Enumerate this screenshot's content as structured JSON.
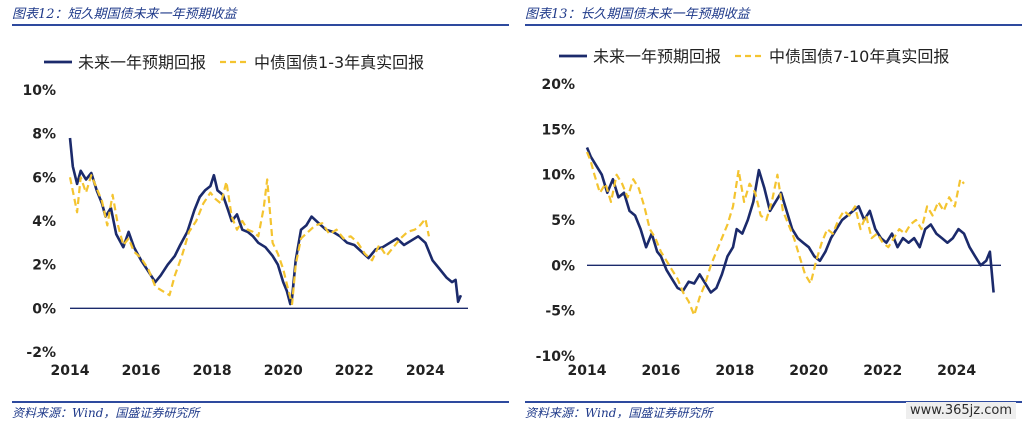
{
  "charts": [
    {
      "title": "图表12：短久期国债未来一年预期收益",
      "source": "资料来源：Wind，国盛证券研究所"
    },
    {
      "title": "图表13：长久期国债未来一年预期收益",
      "source": "资料来源：Wind，国盛证券研究所"
    }
  ],
  "watermark": "www.365jz.com",
  "colors": {
    "navy": "#1b2a6b",
    "gold": "#f4c430",
    "title": "#1f3a8a",
    "axis": "#1b2a6b"
  },
  "chart_data": [
    {
      "type": "line",
      "title": "",
      "xlabel": "",
      "ylabel": "",
      "xlim": [
        2014,
        2025.2
      ],
      "ylim": [
        -2,
        10
      ],
      "yticks": [
        -2,
        0,
        2,
        4,
        6,
        8,
        10
      ],
      "ytick_labels": [
        "-2%",
        "0%",
        "2%",
        "4%",
        "6%",
        "8%",
        "10%"
      ],
      "xticks": [
        2014,
        2016,
        2018,
        2020,
        2022,
        2024
      ],
      "xtick_labels": [
        "2014",
        "2016",
        "2018",
        "2020",
        "2022",
        "2024"
      ],
      "legend_position": "top-left",
      "grid": false,
      "series": [
        {
          "name": "未来一年预期回报",
          "style": "solid",
          "x": [
            2014.0,
            2014.08,
            2014.2,
            2014.3,
            2014.45,
            2014.6,
            2014.75,
            2014.9,
            2015.0,
            2015.15,
            2015.3,
            2015.5,
            2015.65,
            2015.8,
            2015.9,
            2016.0,
            2016.2,
            2016.4,
            2016.55,
            2016.75,
            2016.95,
            2017.1,
            2017.3,
            2017.5,
            2017.65,
            2017.8,
            2017.95,
            2018.05,
            2018.15,
            2018.3,
            2018.45,
            2018.55,
            2018.7,
            2018.85,
            2019.0,
            2019.15,
            2019.3,
            2019.5,
            2019.7,
            2019.85,
            2020.0,
            2020.1,
            2020.2,
            2020.25,
            2020.35,
            2020.5,
            2020.65,
            2020.8,
            2021.0,
            2021.2,
            2021.4,
            2021.6,
            2021.8,
            2022.0,
            2022.2,
            2022.4,
            2022.6,
            2022.8,
            2023.0,
            2023.2,
            2023.4,
            2023.6,
            2023.8,
            2024.0,
            2024.2,
            2024.4,
            2024.6,
            2024.75,
            2024.85,
            2024.92,
            2025.0
          ],
          "values": [
            7.8,
            6.5,
            5.7,
            6.3,
            5.9,
            6.2,
            5.4,
            4.8,
            4.2,
            4.6,
            3.4,
            2.8,
            3.5,
            2.8,
            2.5,
            2.2,
            1.7,
            1.2,
            1.5,
            2.0,
            2.4,
            2.9,
            3.5,
            4.5,
            5.1,
            5.4,
            5.6,
            6.1,
            5.4,
            5.2,
            4.5,
            4.0,
            4.3,
            3.6,
            3.5,
            3.3,
            3.0,
            2.8,
            2.4,
            2.0,
            1.2,
            0.8,
            0.2,
            0.5,
            2.2,
            3.6,
            3.8,
            4.2,
            3.9,
            3.6,
            3.5,
            3.3,
            3.0,
            2.9,
            2.6,
            2.3,
            2.7,
            2.8,
            3.0,
            3.2,
            2.9,
            3.1,
            3.3,
            3.0,
            2.2,
            1.8,
            1.4,
            1.2,
            1.3,
            0.3,
            0.6
          ]
        },
        {
          "name": "中债国债1-3年真实回报",
          "style": "dashed",
          "x": [
            2014.0,
            2014.1,
            2014.2,
            2014.3,
            2014.45,
            2014.6,
            2014.75,
            2014.9,
            2015.05,
            2015.2,
            2015.35,
            2015.5,
            2015.65,
            2015.8,
            2016.0,
            2016.2,
            2016.4,
            2016.6,
            2016.8,
            2016.95,
            2017.15,
            2017.35,
            2017.55,
            2017.75,
            2017.95,
            2018.1,
            2018.25,
            2018.4,
            2018.55,
            2018.7,
            2018.85,
            2019.0,
            2019.15,
            2019.3,
            2019.45,
            2019.55,
            2019.7,
            2019.85,
            2020.0,
            2020.15,
            2020.25,
            2020.35,
            2020.5,
            2020.7,
            2020.9,
            2021.1,
            2021.3,
            2021.5,
            2021.7,
            2021.9,
            2022.1,
            2022.3,
            2022.5,
            2022.7,
            2022.9,
            2023.1,
            2023.3,
            2023.5,
            2023.7,
            2023.85,
            2024.0,
            2024.1
          ],
          "values": [
            6.0,
            5.2,
            4.4,
            6.0,
            5.3,
            6.1,
            5.5,
            4.9,
            3.8,
            5.2,
            3.8,
            2.9,
            3.2,
            2.6,
            2.3,
            1.8,
            1.0,
            0.8,
            0.6,
            1.5,
            2.4,
            3.5,
            4.0,
            4.8,
            5.3,
            5.0,
            4.8,
            5.8,
            4.2,
            3.6,
            4.0,
            3.6,
            3.5,
            3.3,
            4.6,
            5.9,
            3.0,
            2.5,
            1.8,
            0.8,
            0.2,
            2.0,
            3.2,
            3.5,
            3.8,
            3.9,
            3.4,
            3.6,
            3.2,
            3.3,
            3.0,
            2.5,
            2.2,
            2.9,
            2.4,
            2.8,
            3.2,
            3.5,
            3.6,
            3.8,
            4.1,
            3.3
          ]
        }
      ]
    },
    {
      "type": "line",
      "title": "",
      "xlabel": "",
      "ylabel": "",
      "xlim": [
        2014,
        2025.2
      ],
      "ylim": [
        -10,
        20
      ],
      "yticks": [
        -10,
        -5,
        0,
        5,
        10,
        15,
        20
      ],
      "ytick_labels": [
        "-10%",
        "-5%",
        "0%",
        "5%",
        "10%",
        "15%",
        "20%"
      ],
      "xticks": [
        2014,
        2016,
        2018,
        2020,
        2022,
        2024
      ],
      "xtick_labels": [
        "2014",
        "2016",
        "2018",
        "2020",
        "2022",
        "2024"
      ],
      "legend_position": "top-left",
      "grid": false,
      "series": [
        {
          "name": "未来一年预期回报",
          "style": "solid",
          "x": [
            2014.0,
            2014.1,
            2014.25,
            2014.4,
            2014.55,
            2014.7,
            2014.85,
            2015.0,
            2015.15,
            2015.3,
            2015.45,
            2015.6,
            2015.75,
            2015.9,
            2016.0,
            2016.15,
            2016.3,
            2016.45,
            2016.6,
            2016.75,
            2016.9,
            2017.05,
            2017.2,
            2017.35,
            2017.5,
            2017.65,
            2017.8,
            2017.95,
            2018.05,
            2018.2,
            2018.35,
            2018.5,
            2018.65,
            2018.8,
            2018.95,
            2019.1,
            2019.25,
            2019.4,
            2019.55,
            2019.7,
            2019.85,
            2020.0,
            2020.15,
            2020.3,
            2020.45,
            2020.6,
            2020.75,
            2020.9,
            2021.05,
            2021.2,
            2021.35,
            2021.5,
            2021.65,
            2021.8,
            2021.95,
            2022.1,
            2022.25,
            2022.4,
            2022.55,
            2022.7,
            2022.85,
            2023.0,
            2023.15,
            2023.3,
            2023.45,
            2023.6,
            2023.75,
            2023.9,
            2024.05,
            2024.2,
            2024.35,
            2024.5,
            2024.65,
            2024.8,
            2024.9,
            2025.0
          ],
          "values": [
            13.0,
            12.0,
            11.0,
            10.0,
            8.0,
            9.5,
            7.5,
            8.0,
            6.0,
            5.5,
            4.0,
            2.0,
            3.5,
            1.5,
            1.0,
            -0.5,
            -1.5,
            -2.5,
            -2.8,
            -1.8,
            -2.0,
            -1.0,
            -2.0,
            -3.0,
            -2.5,
            -1.0,
            1.0,
            2.0,
            4.0,
            3.5,
            5.0,
            7.0,
            10.5,
            8.5,
            6.0,
            7.0,
            8.0,
            6.0,
            4.0,
            3.0,
            2.5,
            2.0,
            1.0,
            0.5,
            1.5,
            3.0,
            4.0,
            5.0,
            5.5,
            6.0,
            6.5,
            5.0,
            6.0,
            4.0,
            3.0,
            2.5,
            3.5,
            2.0,
            3.0,
            2.5,
            3.0,
            2.0,
            4.0,
            4.5,
            3.5,
            3.0,
            2.5,
            3.0,
            4.0,
            3.5,
            2.0,
            1.0,
            0.0,
            0.5,
            1.5,
            -3.0
          ]
        },
        {
          "name": "中债国债7-10年真实回报",
          "style": "dashed",
          "x": [
            2014.0,
            2014.1,
            2014.2,
            2014.35,
            2014.5,
            2014.65,
            2014.8,
            2014.95,
            2015.1,
            2015.25,
            2015.4,
            2015.55,
            2015.7,
            2015.85,
            2016.0,
            2016.15,
            2016.3,
            2016.45,
            2016.6,
            2016.75,
            2016.9,
            2017.05,
            2017.2,
            2017.35,
            2017.5,
            2017.65,
            2017.8,
            2017.95,
            2018.1,
            2018.25,
            2018.4,
            2018.55,
            2018.7,
            2018.85,
            2019.0,
            2019.15,
            2019.3,
            2019.45,
            2019.6,
            2019.75,
            2019.9,
            2020.05,
            2020.2,
            2020.35,
            2020.5,
            2020.65,
            2020.8,
            2020.95,
            2021.1,
            2021.25,
            2021.4,
            2021.55,
            2021.7,
            2021.85,
            2022.0,
            2022.15,
            2022.3,
            2022.45,
            2022.6,
            2022.75,
            2022.9,
            2023.05,
            2023.2,
            2023.35,
            2023.5,
            2023.65,
            2023.8,
            2023.95,
            2024.1,
            2024.2
          ],
          "values": [
            12.5,
            11.5,
            10.0,
            8.0,
            9.0,
            7.0,
            10.0,
            9.0,
            7.5,
            9.5,
            8.5,
            6.5,
            4.0,
            3.0,
            1.5,
            0.5,
            -0.5,
            -1.5,
            -3.0,
            -4.0,
            -5.5,
            -3.5,
            -2.0,
            0.0,
            1.5,
            3.0,
            4.5,
            6.5,
            10.5,
            7.0,
            9.0,
            8.0,
            5.5,
            5.0,
            7.0,
            10.0,
            6.0,
            4.5,
            3.0,
            1.0,
            -1.0,
            -2.0,
            0.5,
            2.5,
            4.0,
            3.5,
            5.0,
            6.0,
            5.5,
            6.5,
            4.0,
            5.5,
            3.0,
            3.5,
            2.5,
            2.0,
            3.0,
            4.0,
            3.5,
            4.5,
            5.0,
            4.0,
            6.5,
            5.5,
            7.0,
            6.0,
            7.5,
            6.5,
            9.5,
            9.0
          ]
        }
      ]
    }
  ]
}
